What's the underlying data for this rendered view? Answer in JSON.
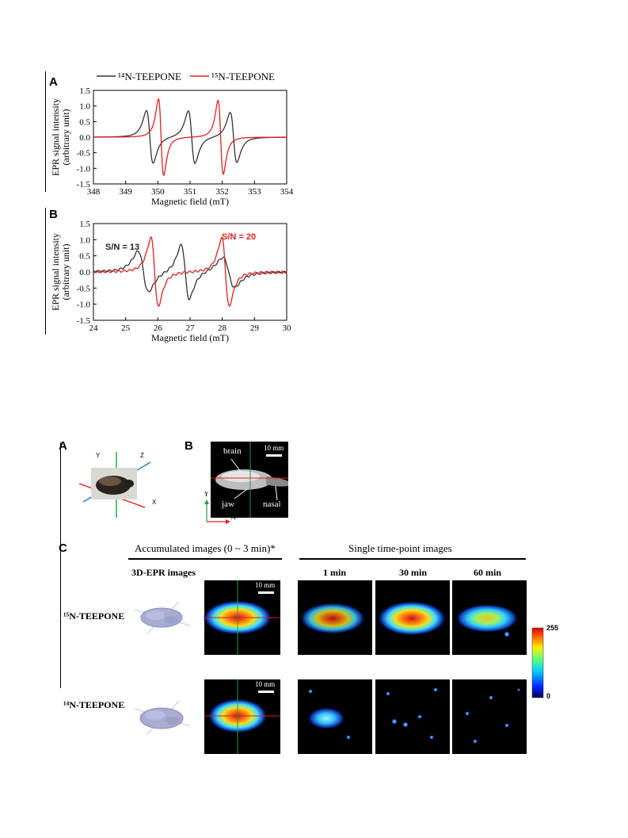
{
  "figure1": {
    "legend": {
      "series_a": "¹⁴N-TEEPONE",
      "series_b": "¹⁵N-TEEPONE"
    },
    "panel_a": {
      "letter": "A"
    },
    "panel_b": {
      "letter": "B",
      "sn_black": "S/N = 13",
      "sn_red": "S/N = 20"
    }
  },
  "chart_data": [
    {
      "type": "line",
      "panel": "A",
      "xlabel": "Magnetic field  (mT)",
      "ylabel_line1": "EPR signal intensity",
      "ylabel_line2": "(arbitrary unit)",
      "xlim": [
        348,
        354
      ],
      "ylim": [
        -1.5,
        1.5
      ],
      "xticks": [
        348,
        349,
        350,
        351,
        352,
        353,
        354
      ],
      "yticks": [
        1.5,
        1.0,
        0.5,
        0.0,
        -0.5,
        -1.0,
        -1.5
      ],
      "series": [
        {
          "name": "¹⁴N-TEEPONE",
          "color": "#333333",
          "lines": [
            {
              "center": 349.75,
              "amp": 1.0,
              "width": 0.18
            },
            {
              "center": 351.05,
              "amp": 1.0,
              "width": 0.18
            },
            {
              "center": 352.35,
              "amp": 0.95,
              "width": 0.18
            }
          ]
        },
        {
          "name": "¹⁵N-TEEPONE",
          "color": "#e02020",
          "lines": [
            {
              "center": 350.1,
              "amp": 1.45,
              "width": 0.14
            },
            {
              "center": 351.95,
              "amp": 1.4,
              "width": 0.14
            }
          ]
        }
      ]
    },
    {
      "type": "line",
      "panel": "B",
      "xlabel": "Magnetic field  (mT)",
      "ylabel_line1": "EPR signal intensity",
      "ylabel_line2": "(arbitrary unit)",
      "xlim": [
        24,
        30
      ],
      "ylim": [
        -1.5,
        1.5
      ],
      "xticks": [
        24,
        25,
        26,
        27,
        28,
        29,
        30
      ],
      "yticks": [
        1.5,
        1.0,
        0.5,
        0.0,
        -0.5,
        -1.0,
        -1.5
      ],
      "series": [
        {
          "name": "¹⁴N-TEEPONE",
          "color": "#333333",
          "lines": [
            {
              "center": 25.55,
              "amp": 0.75,
              "width": 0.28
            },
            {
              "center": 26.85,
              "amp": 1.0,
              "width": 0.22
            },
            {
              "center": 28.2,
              "amp": 0.55,
              "width": 0.32
            }
          ]
        },
        {
          "name": "¹⁵N-TEEPONE",
          "color": "#e02020",
          "lines": [
            {
              "center": 25.9,
              "amp": 1.25,
              "width": 0.2
            },
            {
              "center": 28.1,
              "amp": 1.25,
              "width": 0.2
            }
          ]
        }
      ]
    }
  ],
  "figure2": {
    "panel_a": {
      "letter": "A",
      "axis_y": "Y",
      "axis_z": "Z",
      "axis_x": "X"
    },
    "panel_b": {
      "letter": "B",
      "brain": "brain",
      "jaw": "jaw",
      "nasal": "nasal",
      "scale": "10 mm",
      "axis_y": "Y",
      "axis_x": "X"
    },
    "panel_c": {
      "letter": "C",
      "accumulated_header": "Accumulated images (0 ~ 3 min)*",
      "single_header": "Single time-point images",
      "epr3d_label": "3D-EPR images",
      "times": [
        "1 min",
        "30 min",
        "60 min"
      ],
      "row1_label": "¹⁵N-TEEPONE",
      "row2_label": "¹⁴N-TEEPONE",
      "scale": "10 mm",
      "colorbar_max": "255",
      "colorbar_min": "0"
    }
  }
}
